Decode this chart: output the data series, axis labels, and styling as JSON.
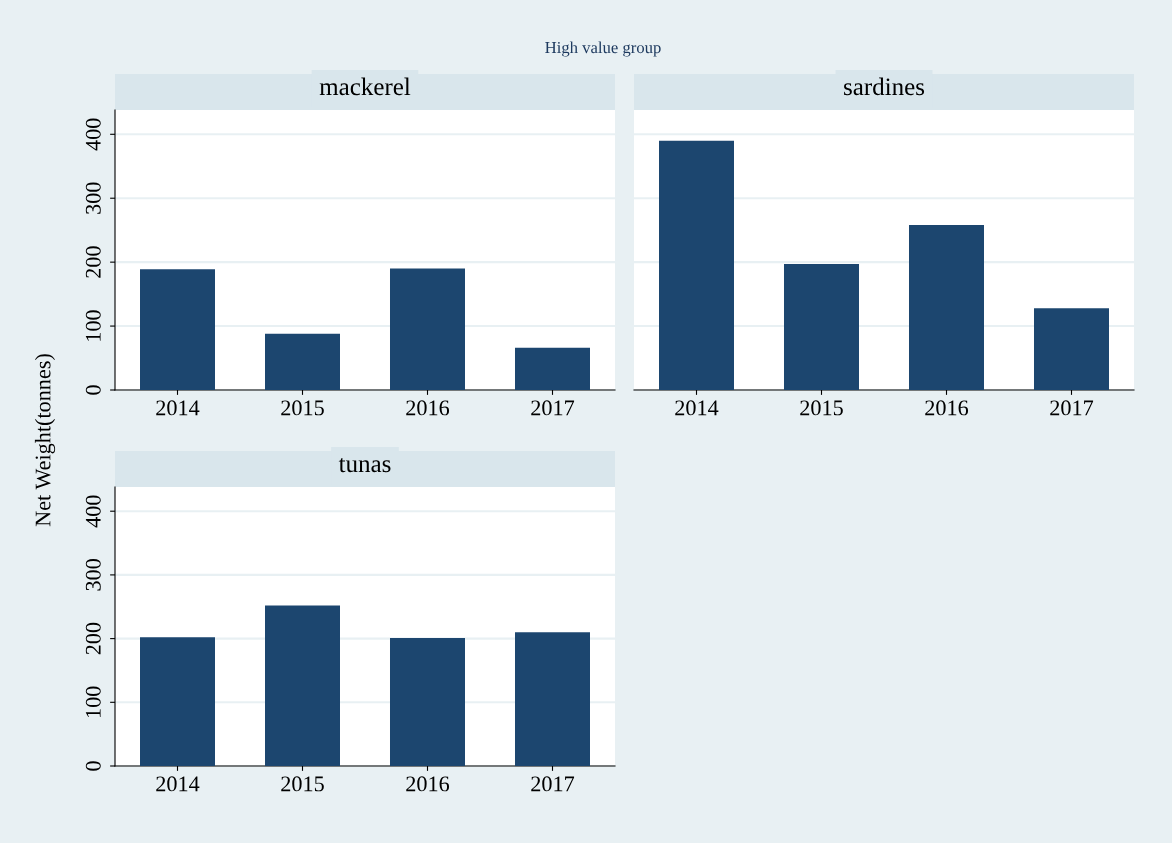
{
  "chart_data": [
    {
      "type": "bar",
      "title": "mackerel",
      "ylabel": "Net Weight(tonnes)",
      "annotations": [
        "High value group"
      ],
      "categories": [
        "2014",
        "2015",
        "2016",
        "2017"
      ],
      "values": [
        189,
        88,
        190,
        66
      ],
      "color": "#1c466f",
      "ylim": [
        0,
        438
      ],
      "yticks": [
        0,
        100,
        200,
        300,
        400
      ],
      "grid": "y"
    },
    {
      "type": "bar",
      "title": "sardines",
      "categories": [
        "2014",
        "2015",
        "2016",
        "2017"
      ],
      "values": [
        390,
        197,
        258,
        128
      ],
      "color": "#1c466f",
      "ylim": [
        0,
        438
      ],
      "yticks": [
        0,
        100,
        200,
        300,
        400
      ],
      "grid": "y",
      "tick_labels": "x"
    },
    {
      "type": "bar",
      "title": "tunas",
      "categories": [
        "2014",
        "2015",
        "2016",
        "2017"
      ],
      "values": [
        202,
        252,
        201,
        210
      ],
      "color": "#1c466f",
      "ylim": [
        0,
        438
      ],
      "yticks": [
        0,
        100,
        200,
        300,
        400
      ],
      "grid": "y"
    }
  ]
}
